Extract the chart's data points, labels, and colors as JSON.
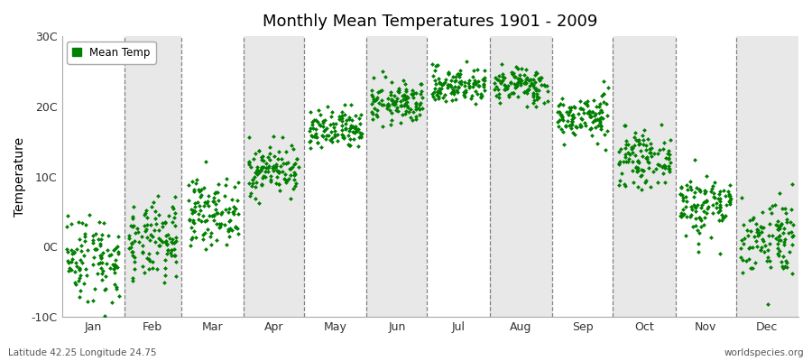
{
  "title": "Monthly Mean Temperatures 1901 - 2009",
  "ylabel": "Temperature",
  "ylim": [
    -10,
    30
  ],
  "yticks": [
    -10,
    0,
    10,
    20,
    30
  ],
  "ytick_labels": [
    "-10C",
    "0C",
    "10C",
    "20C",
    "30C"
  ],
  "month_labels": [
    "Jan",
    "Feb",
    "Mar",
    "Apr",
    "May",
    "Jun",
    "Jul",
    "Aug",
    "Sep",
    "Oct",
    "Nov",
    "Dec"
  ],
  "month_days": [
    31,
    28,
    31,
    30,
    31,
    30,
    31,
    31,
    30,
    31,
    30,
    31
  ],
  "background_color": "#ffffff",
  "plot_bg_even": "#ffffff",
  "plot_bg_odd": "#e8e8e8",
  "dot_color": "#008000",
  "legend_label": "Mean Temp",
  "bottom_left_text": "Latitude 42.25 Longitude 24.75",
  "bottom_right_text": "worldspecies.org",
  "n_years": 109,
  "monthly_means": [
    -1.5,
    0.5,
    5.0,
    11.0,
    16.5,
    20.5,
    23.0,
    23.0,
    18.5,
    12.5,
    6.0,
    1.5
  ],
  "monthly_stds": [
    3.2,
    2.8,
    2.3,
    1.8,
    1.5,
    1.5,
    1.3,
    1.3,
    1.6,
    1.8,
    2.3,
    2.8
  ],
  "seed": 42
}
